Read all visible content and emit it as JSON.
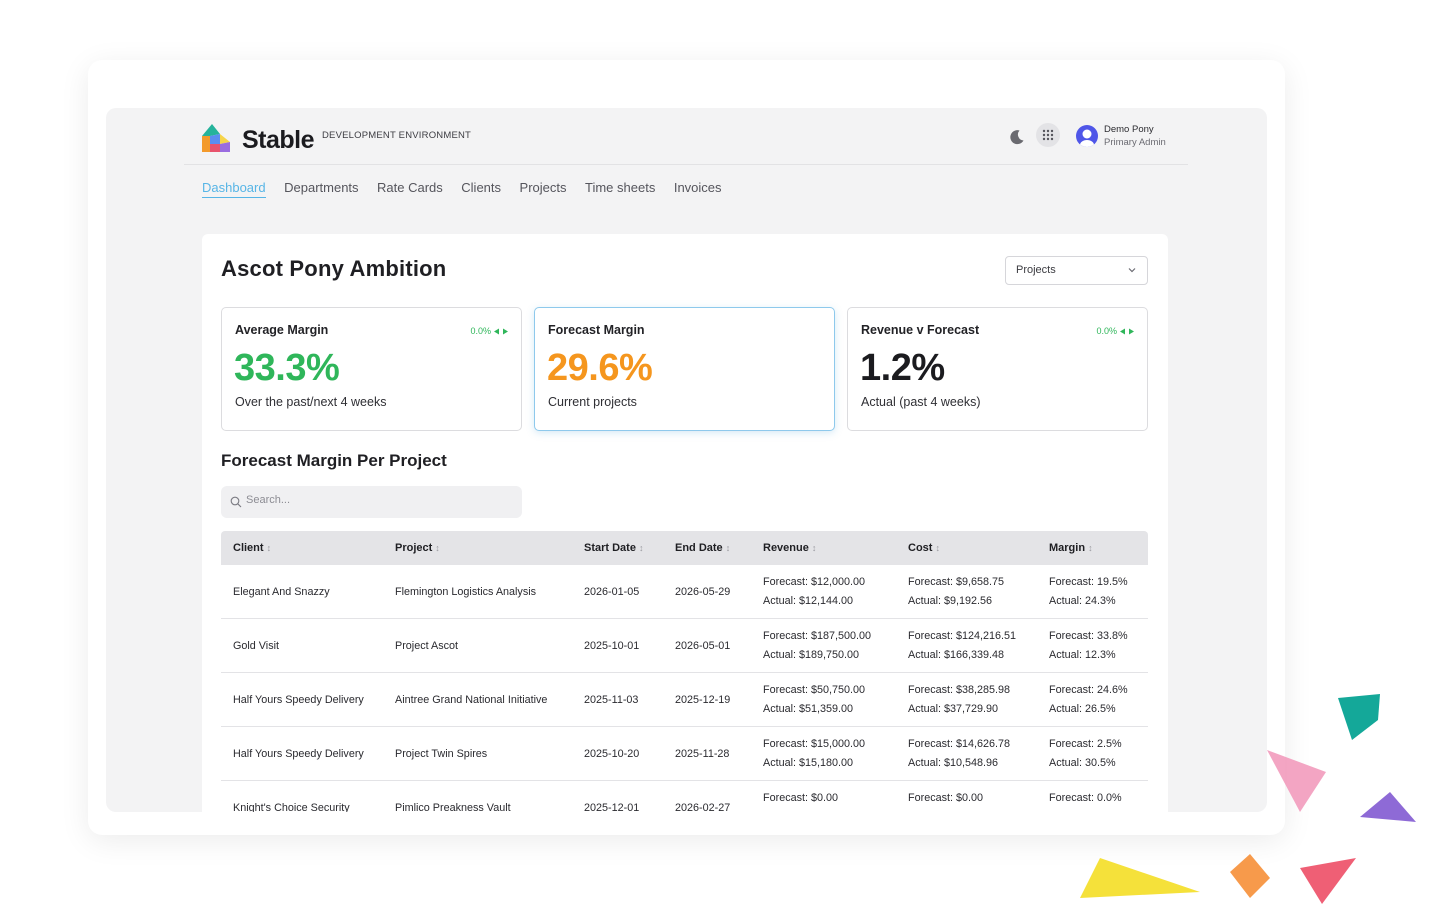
{
  "brand": {
    "name": "Stable",
    "environment": "DEVELOPMENT ENVIRONMENT"
  },
  "user": {
    "name": "Demo Pony",
    "role": "Primary Admin"
  },
  "nav": {
    "items": [
      {
        "label": "Dashboard",
        "active": true
      },
      {
        "label": "Departments"
      },
      {
        "label": "Rate Cards"
      },
      {
        "label": "Clients"
      },
      {
        "label": "Projects"
      },
      {
        "label": "Time sheets"
      },
      {
        "label": "Invoices"
      }
    ]
  },
  "page": {
    "title": "Ascot Pony Ambition",
    "select_value": "Projects"
  },
  "stats": [
    {
      "title": "Average Margin",
      "value": "33.3%",
      "subtitle": "Over the past/next 4 weeks",
      "delta": "0.0%",
      "color": "#2fb65a"
    },
    {
      "title": "Forecast Margin",
      "value": "29.6%",
      "subtitle": "Current projects",
      "color": "#f5961e"
    },
    {
      "title": "Revenue v Forecast",
      "value": "1.2%",
      "subtitle": "Actual (past 4 weeks)",
      "delta": "0.0%",
      "color": "#1b1b1f"
    }
  ],
  "section": {
    "title": "Forecast Margin Per Project"
  },
  "search": {
    "placeholder": "Search..."
  },
  "table": {
    "headers": {
      "client": "Client",
      "project": "Project",
      "start": "Start Date",
      "end": "End Date",
      "revenue": "Revenue",
      "cost": "Cost",
      "margin": "Margin"
    },
    "rows": [
      {
        "client": "Elegant And Snazzy",
        "project": "Flemington Logistics Analysis",
        "start": "2026-01-05",
        "end": "2026-05-29",
        "revenue_forecast": "Forecast: $12,000.00",
        "revenue_actual": "Actual: $12,144.00",
        "cost_forecast": "Forecast: $9,658.75",
        "cost_actual": "Actual: $9,192.56",
        "margin_forecast": "Forecast: 19.5%",
        "margin_actual": "Actual: 24.3%"
      },
      {
        "client": "Gold Visit",
        "project": "Project Ascot",
        "start": "2025-10-01",
        "end": "2026-05-01",
        "revenue_forecast": "Forecast: $187,500.00",
        "revenue_actual": "Actual: $189,750.00",
        "cost_forecast": "Forecast: $124,216.51",
        "cost_actual": "Actual: $166,339.48",
        "margin_forecast": "Forecast: 33.8%",
        "margin_actual": "Actual: 12.3%"
      },
      {
        "client": "Half Yours Speedy Delivery",
        "project": "Aintree Grand National Initiative",
        "start": "2025-11-03",
        "end": "2025-12-19",
        "revenue_forecast": "Forecast: $50,750.00",
        "revenue_actual": "Actual: $51,359.00",
        "cost_forecast": "Forecast: $38,285.98",
        "cost_actual": "Actual: $37,729.90",
        "margin_forecast": "Forecast: 24.6%",
        "margin_actual": "Actual: 26.5%"
      },
      {
        "client": "Half Yours Speedy Delivery",
        "project": "Project Twin Spires",
        "start": "2025-10-20",
        "end": "2025-11-28",
        "revenue_forecast": "Forecast: $15,000.00",
        "revenue_actual": "Actual: $15,180.00",
        "cost_forecast": "Forecast: $14,626.78",
        "cost_actual": "Actual: $10,548.96",
        "margin_forecast": "Forecast: 2.5%",
        "margin_actual": "Actual: 30.5%"
      },
      {
        "client": "Knight's Choice Security",
        "project": "Pimlico Preakness Vault",
        "start": "2025-12-01",
        "end": "2026-02-27",
        "revenue_forecast": "Forecast: $0.00",
        "revenue_actual": "",
        "cost_forecast": "Forecast: $0.00",
        "cost_actual": "",
        "margin_forecast": "Forecast: 0.0%",
        "margin_actual": ""
      }
    ]
  },
  "colors": {
    "accent": "#57b5e6",
    "green": "#2fb65a",
    "orange": "#f5961e"
  }
}
